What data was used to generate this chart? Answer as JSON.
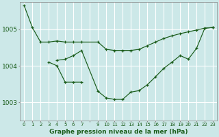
{
  "title": "Graphe pression niveau de la mer (hPa)",
  "background_color": "#cce8e8",
  "grid_color": "#ffffff",
  "line_color": "#1a5c1a",
  "x_labels": [
    "0",
    "1",
    "2",
    "3",
    "4",
    "5",
    "6",
    "7",
    "",
    "9",
    "10",
    "11",
    "12",
    "13",
    "14",
    "15",
    "16",
    "17",
    "18",
    "19",
    "20",
    "21",
    "22",
    "23"
  ],
  "xlim": [
    -0.5,
    23.5
  ],
  "ylim": [
    1002.5,
    1005.75
  ],
  "yticks": [
    1003,
    1004,
    1005
  ],
  "series": [
    {
      "x": [
        0,
        1,
        2,
        3,
        4,
        5,
        6,
        7,
        9,
        10,
        11,
        12,
        13,
        14,
        15,
        16,
        17,
        18,
        19,
        20,
        21,
        22,
        23
      ],
      "y": [
        1005.65,
        1005.05,
        1004.65,
        1004.65,
        1004.68,
        1004.65,
        1004.65,
        1004.65,
        1004.65,
        1004.45,
        1004.42,
        1004.42,
        1004.42,
        1004.45,
        1004.55,
        1004.65,
        1004.75,
        1004.82,
        1004.88,
        1004.93,
        1004.98,
        1005.03,
        1005.05
      ]
    },
    {
      "x": [
        3,
        4,
        5,
        6,
        7
      ],
      "y": [
        1004.1,
        1004.0,
        1003.55,
        1003.55,
        1003.55
      ]
    },
    {
      "x": [
        4,
        5,
        6,
        7,
        9,
        10,
        11,
        12,
        13,
        14,
        15,
        16,
        17,
        18,
        19,
        20,
        21,
        22,
        23
      ],
      "y": [
        1004.15,
        1004.18,
        1004.28,
        1004.42,
        1003.3,
        1003.12,
        1003.08,
        1003.08,
        1003.28,
        1003.32,
        1003.48,
        1003.7,
        1003.93,
        1004.1,
        1004.28,
        1004.18,
        1004.48,
        1005.03,
        1005.05
      ]
    }
  ]
}
